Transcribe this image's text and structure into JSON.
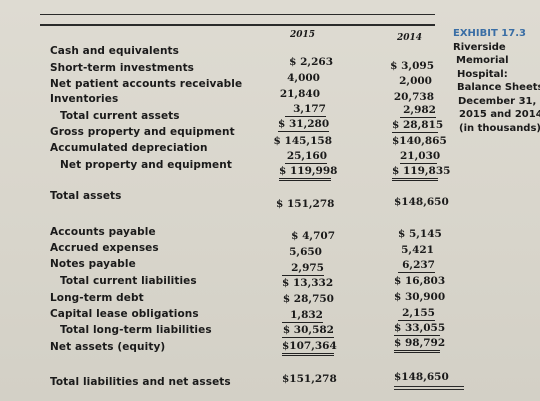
{
  "years": [
    "2015",
    "2014"
  ],
  "exhibit": {
    "title": "EXHIBIT 17.3",
    "lines": [
      "Riverside",
      "Memorial",
      "Hospital:",
      "Balance Sheets,",
      "December 31,",
      "2015 and 2014",
      "(in thousands)"
    ]
  },
  "rows": [
    {
      "label": "Cash and equivalents",
      "v2015": "$ 2,263",
      "v2014": "$ 3,095"
    },
    {
      "label": "Short-term investments",
      "v2015": "4,000",
      "v2014": "2,000"
    },
    {
      "label": "Net patient accounts receivable",
      "v2015": "21,840",
      "v2014": "20,738"
    },
    {
      "label": "Inventories",
      "v2015": "3,177",
      "v2014": "2,982"
    },
    {
      "label": "Total current assets",
      "v2015": "$ 31,280",
      "v2014": "$ 28,815"
    },
    {
      "label": "Gross property and equipment",
      "v2015": "$ 145,158",
      "v2014": "$140,865"
    },
    {
      "label": "Accumulated depreciation",
      "v2015": "25,160",
      "v2014": "21,030"
    },
    {
      "label": "Net property and equipment",
      "v2015": "$ 119,998",
      "v2014": "$ 119,835"
    },
    {
      "label": "Total assets",
      "v2015": "$ 151,278",
      "v2014": "$148,650"
    },
    {
      "label": "Accounts payable",
      "v2015": "$ 4,707",
      "v2014": "$ 5,145"
    },
    {
      "label": "Accrued expenses",
      "v2015": "5,650",
      "v2014": "5,421"
    },
    {
      "label": "Notes payable",
      "v2015": "2,975",
      "v2014": "6,237"
    },
    {
      "label": "Total current liabilities",
      "v2015": "$ 13,332",
      "v2014": "$ 16,803"
    },
    {
      "label": "Long-term debt",
      "v2015": "$ 28,750",
      "v2014": "$ 30,900"
    },
    {
      "label": "Capital lease obligations",
      "v2015": "1,832",
      "v2014": "2,155"
    },
    {
      "label": "Total long-term liabilities",
      "v2015": "$ 30,582",
      "v2014": "$ 33,055"
    },
    {
      "label": "Net assets (equity)",
      "v2015": "$107,364",
      "v2014": "$ 98,792"
    },
    {
      "label": "Total liabilities and net assets",
      "v2015": "$151,278",
      "v2014": "$148,650"
    }
  ]
}
